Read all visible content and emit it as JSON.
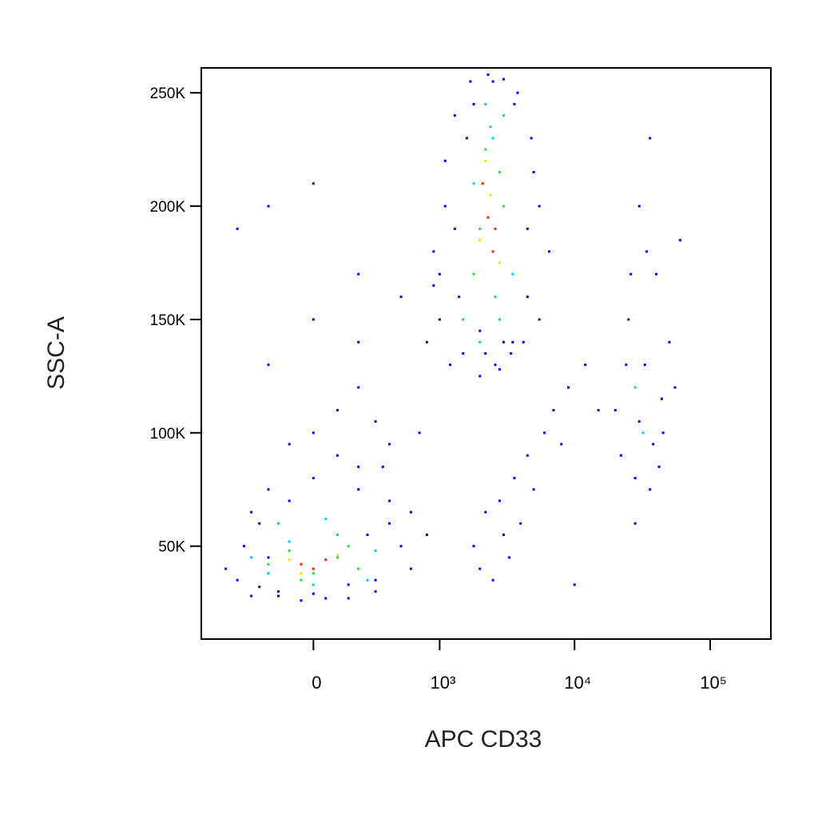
{
  "chart_data": {
    "type": "scatter",
    "xlabel": "APC CD33",
    "ylabel": "SSC-A",
    "xscale": "biexponential",
    "xlim": [
      -780,
      280000
    ],
    "ylim": [
      9000,
      261000
    ],
    "xticks": [
      0,
      {
        "value": 1000,
        "label": "10³"
      },
      {
        "value": 10000,
        "label": "10⁴"
      },
      {
        "value": 100000,
        "label": "10⁵"
      }
    ],
    "yticks": [
      {
        "value": 50000,
        "label": "50K"
      },
      {
        "value": 100000,
        "label": "100K"
      },
      {
        "value": 150000,
        "label": "150K"
      },
      {
        "value": 200000,
        "label": "200K"
      },
      {
        "value": 250000,
        "label": "250K"
      }
    ],
    "series": [
      {
        "color": "#0000ff",
        "x": [
          -500,
          -400,
          -350,
          -300,
          -250,
          -200,
          -150,
          -100,
          -50,
          0,
          50,
          100,
          150,
          200,
          250,
          300,
          350,
          400,
          500,
          600,
          -300,
          -200,
          -100,
          0,
          100,
          200,
          300,
          400,
          -250,
          -150,
          0,
          150,
          300,
          200,
          400,
          600,
          800,
          -200,
          0,
          200,
          900,
          1000,
          1100,
          1200,
          1300,
          1500,
          1700,
          2000,
          2300,
          2600,
          3000,
          3400,
          3800,
          4200,
          4800,
          5500,
          6500,
          1100,
          1400,
          1800,
          2200,
          2800,
          3500,
          4500,
          5500,
          1000,
          1600,
          2500,
          3600,
          5000,
          900,
          1300,
          2000,
          3000,
          4500,
          20000,
          22000,
          25000,
          28000,
          30000,
          33000,
          36000,
          40000,
          45000,
          50000,
          55000,
          24000,
          30000,
          38000,
          44000,
          26000,
          34000,
          42000,
          28000,
          36000,
          60000,
          1800,
          2000,
          2200,
          2500,
          2800,
          3000,
          3300,
          3600,
          4000,
          4500,
          5000,
          6000,
          7000,
          8000,
          9000,
          -400,
          -200,
          0,
          200,
          500,
          800,
          700,
          12000,
          15000,
          10000
        ],
        "y": [
          40000,
          35000,
          50000,
          28000,
          60000,
          45000,
          30000,
          70000,
          26000,
          80000,
          27000,
          90000,
          33000,
          75000,
          55000,
          30000,
          85000,
          60000,
          50000,
          40000,
          65000,
          75000,
          95000,
          100000,
          110000,
          85000,
          105000,
          70000,
          32000,
          28000,
          29000,
          27000,
          35000,
          120000,
          95000,
          65000,
          55000,
          130000,
          150000,
          140000,
          180000,
          150000,
          220000,
          130000,
          240000,
          135000,
          255000,
          125000,
          258000,
          130000,
          256000,
          135000,
          250000,
          140000,
          230000,
          200000,
          180000,
          200000,
          160000,
          245000,
          135000,
          128000,
          140000,
          160000,
          150000,
          170000,
          230000,
          255000,
          245000,
          215000,
          165000,
          190000,
          145000,
          140000,
          190000,
          110000,
          90000,
          150000,
          80000,
          200000,
          130000,
          75000,
          170000,
          100000,
          140000,
          120000,
          130000,
          105000,
          95000,
          115000,
          170000,
          180000,
          85000,
          60000,
          230000,
          185000,
          50000,
          40000,
          65000,
          35000,
          70000,
          55000,
          45000,
          80000,
          60000,
          90000,
          75000,
          100000,
          110000,
          95000,
          120000,
          190000,
          200000,
          210000,
          170000,
          160000,
          140000,
          100000,
          130000,
          110000,
          33000
        ]
      },
      {
        "color": "#00c8ff",
        "x": [
          -300,
          -200,
          -100,
          0,
          100,
          200,
          300,
          -150,
          50,
          250,
          1500,
          2000,
          2500,
          3000,
          3500,
          1800,
          2800,
          2200,
          28000,
          32000
        ],
        "y": [
          45000,
          38000,
          52000,
          33000,
          55000,
          40000,
          48000,
          60000,
          62000,
          35000,
          150000,
          140000,
          230000,
          240000,
          170000,
          210000,
          150000,
          245000,
          120000,
          100000
        ]
      },
      {
        "color": "#20e040",
        "x": [
          -200,
          -100,
          0,
          100,
          200,
          -50,
          150,
          1800,
          2200,
          2600,
          3000,
          2000,
          2800,
          2400
        ],
        "y": [
          42000,
          48000,
          38000,
          45000,
          40000,
          35000,
          50000,
          170000,
          225000,
          160000,
          200000,
          190000,
          215000,
          235000
        ]
      },
      {
        "color": "#ffe000",
        "x": [
          -100,
          0,
          100,
          -50,
          2000,
          2400,
          2800,
          2200
        ],
        "y": [
          44000,
          40000,
          46000,
          38000,
          185000,
          205000,
          175000,
          220000
        ]
      },
      {
        "color": "#ff2000",
        "x": [
          -50,
          50,
          0,
          2300,
          2500,
          2100,
          2600
        ],
        "y": [
          42000,
          44000,
          40000,
          195000,
          180000,
          210000,
          190000
        ]
      }
    ]
  }
}
